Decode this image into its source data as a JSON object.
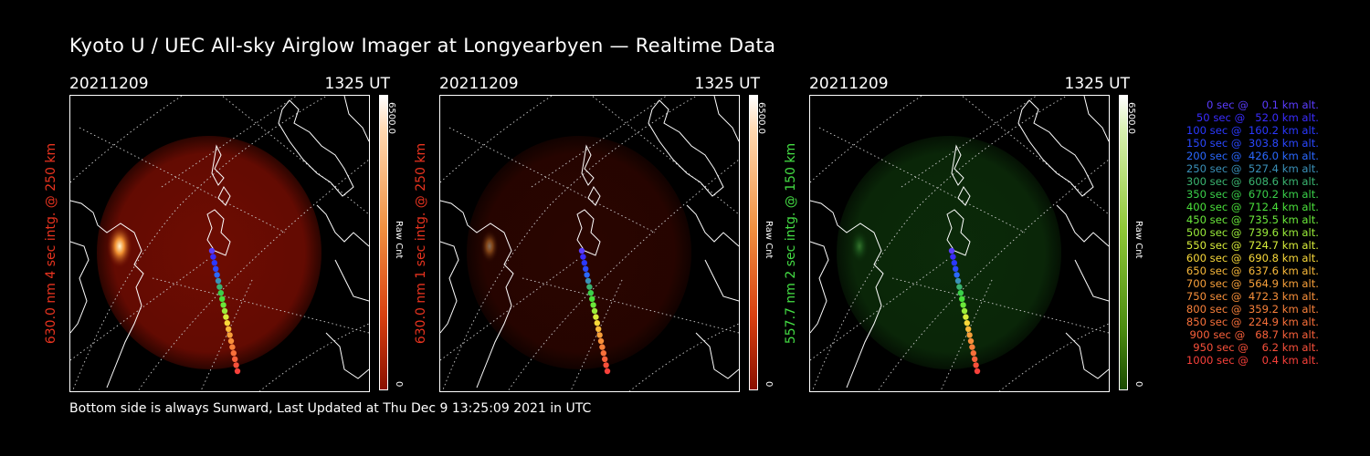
{
  "title": "Kyoto U / UEC All-sky Airglow Imager at Longyearbyen — Realtime Data",
  "footer": "Bottom side is always Sunward, Last Updated at Thu Dec  9 13:25:09 2021 in UTC",
  "panels": [
    {
      "date": "20211209",
      "time": "1325 UT",
      "ylabel": "630.0 nm 4 sec intg. @ 250 km",
      "ylabel_color": "#e8331f",
      "colorbar": {
        "max": "6500.0",
        "min": "0",
        "unit": "Raw Cnt",
        "color_top": "#ffffff",
        "color_bottom": "#b81800",
        "style": "red"
      },
      "glow": {
        "disk_color": "#6e0c02",
        "bright": true,
        "hue": "red"
      }
    },
    {
      "date": "20211209",
      "time": "1325 UT",
      "ylabel": "630.0 nm 1 sec intg. @ 250 km",
      "ylabel_color": "#e8331f",
      "colorbar": {
        "max": "6500.0",
        "min": "0",
        "unit": "Raw Cnt",
        "style": "red"
      },
      "glow": {
        "disk_color": "#2a0500",
        "bright": false,
        "hue": "red"
      }
    },
    {
      "date": "20211209",
      "time": "1325 UT",
      "ylabel": "557.7 nm 2 sec intg. @ 150 km",
      "ylabel_color": "#44dd44",
      "colorbar": {
        "max": "6500.0",
        "min": "0",
        "unit": "Raw Cnt",
        "style": "green"
      },
      "glow": {
        "disk_color": "#0b2a09",
        "bright": false,
        "hue": "green"
      }
    }
  ],
  "legend": [
    {
      "text": "   0 sec @    0.1 km alt.",
      "color": "#5a3cff"
    },
    {
      "text": "  50 sec @   52.0 km alt.",
      "color": "#3a2cff"
    },
    {
      "text": " 100 sec @  160.2 km alt.",
      "color": "#2a38ff"
    },
    {
      "text": " 150 sec @  303.8 km alt.",
      "color": "#2a48ff"
    },
    {
      "text": " 200 sec @  426.0 km alt.",
      "color": "#2a68ff"
    },
    {
      "text": " 250 sec @  527.4 km alt.",
      "color": "#3a90b8"
    },
    {
      "text": " 300 sec @  608.6 km alt.",
      "color": "#3ab470"
    },
    {
      "text": " 350 sec @  670.2 km alt.",
      "color": "#3ad04a"
    },
    {
      "text": " 400 sec @  712.4 km alt.",
      "color": "#4ae03a"
    },
    {
      "text": " 450 sec @  735.5 km alt.",
      "color": "#6ae83a"
    },
    {
      "text": " 500 sec @  739.6 km alt.",
      "color": "#9aec3a"
    },
    {
      "text": " 550 sec @  724.7 km alt.",
      "color": "#d8ec3a"
    },
    {
      "text": " 600 sec @  690.8 km alt.",
      "color": "#f8d83a"
    },
    {
      "text": " 650 sec @  637.6 km alt.",
      "color": "#f8b83a"
    },
    {
      "text": " 700 sec @  564.9 km alt.",
      "color": "#f8a03a"
    },
    {
      "text": " 750 sec @  472.3 km alt.",
      "color": "#f8903a"
    },
    {
      "text": " 800 sec @  359.2 km alt.",
      "color": "#f8803a"
    },
    {
      "text": " 850 sec @  224.9 km alt.",
      "color": "#f8703a"
    },
    {
      "text": " 900 sec @   68.7 km alt.",
      "color": "#f8603a"
    },
    {
      "text": " 950 sec @    6.2 km alt.",
      "color": "#f8503a"
    },
    {
      "text": "1000 sec @    0.4 km alt.",
      "color": "#f8403a"
    }
  ]
}
